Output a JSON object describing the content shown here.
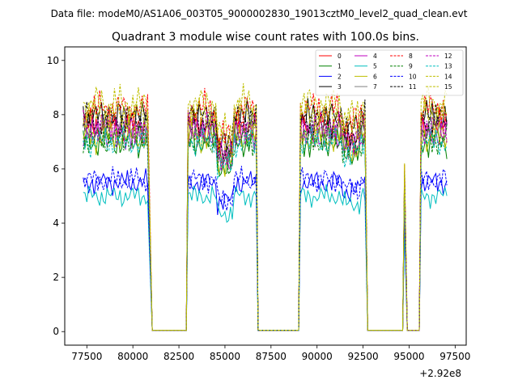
{
  "figure": {
    "suptitle": "Data file: modeM0/AS1A06_003T05_9000002830_19013cztM0_level2_quad_clean.evt"
  },
  "chart_data": {
    "type": "line",
    "title": "Quadrant 3 module wise count rates with 100.0s bins.",
    "xlabel": "",
    "ylabel": "",
    "x_offset_label": "+2.92e8",
    "xlim": [
      76300,
      98100
    ],
    "ylim": [
      -0.5,
      10.5
    ],
    "xticks": [
      77500,
      80000,
      82500,
      85000,
      87500,
      90000,
      92500,
      95000,
      97500
    ],
    "xtick_labels": [
      "77500",
      "80000",
      "82500",
      "85000",
      "87500",
      "90000",
      "92500",
      "95000",
      "97500"
    ],
    "yticks": [
      0,
      2,
      4,
      6,
      8,
      10
    ],
    "ytick_labels": [
      "0",
      "2",
      "4",
      "6",
      "8",
      "10"
    ],
    "bin_seconds": 100,
    "on_segments": [
      [
        77300,
        80800
      ],
      [
        83000,
        86700
      ],
      [
        89100,
        92600
      ],
      [
        94750,
        94750
      ],
      [
        95650,
        97100
      ]
    ],
    "zero_segments": [
      [
        81050,
        82900
      ],
      [
        86800,
        89000
      ],
      [
        92750,
        94650
      ],
      [
        94900,
        95550
      ]
    ],
    "legend": {
      "position": "top-right",
      "ncol": 4
    },
    "series": [
      {
        "name": "0",
        "color": "#ff0000",
        "style": "solid",
        "level": 7.6
      },
      {
        "name": "1",
        "color": "#008000",
        "style": "solid",
        "level": 7.0
      },
      {
        "name": "2",
        "color": "#0000ff",
        "style": "solid",
        "level": 5.5
      },
      {
        "name": "3",
        "color": "#000000",
        "style": "solid",
        "level": 7.9
      },
      {
        "name": "4",
        "color": "#bf00bf",
        "style": "solid",
        "level": 7.3
      },
      {
        "name": "5",
        "color": "#00bfbf",
        "style": "solid",
        "level": 5.0
      },
      {
        "name": "6",
        "color": "#bfbf00",
        "style": "solid",
        "level": 7.2
      },
      {
        "name": "7",
        "color": "#808080",
        "style": "solid",
        "level": 7.4
      },
      {
        "name": "8",
        "color": "#ff0000",
        "style": "dashed",
        "level": 8.2
      },
      {
        "name": "9",
        "color": "#008000",
        "style": "dashed",
        "level": 7.1
      },
      {
        "name": "10",
        "color": "#0000ff",
        "style": "dashed",
        "level": 5.6
      },
      {
        "name": "11",
        "color": "#000000",
        "style": "dashed",
        "level": 7.8
      },
      {
        "name": "12",
        "color": "#bf00bf",
        "style": "dashed",
        "level": 7.5
      },
      {
        "name": "13",
        "color": "#00bfbf",
        "style": "dashed",
        "level": 7.0
      },
      {
        "name": "14",
        "color": "#bfbf00",
        "style": "dashed",
        "level": 8.4
      },
      {
        "name": "15",
        "color": "#bfbf00",
        "style": "dashed",
        "level": 8.0
      }
    ]
  }
}
